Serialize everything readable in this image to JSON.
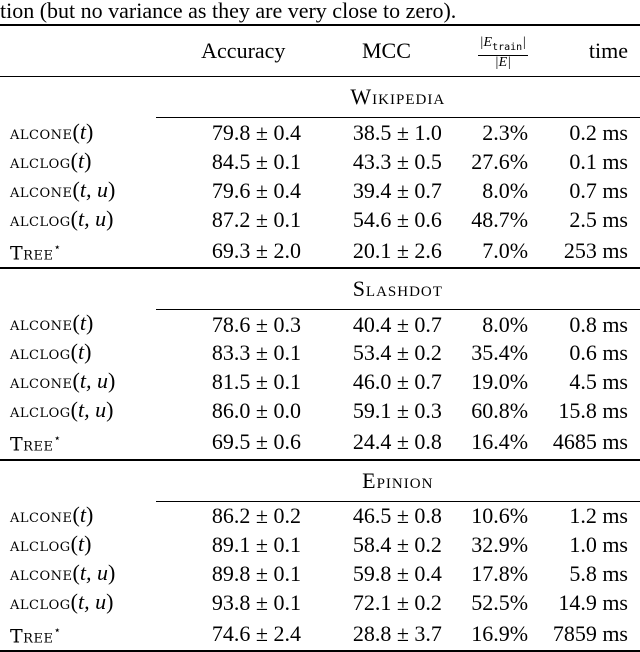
{
  "caption": "tion (but no variance as they are very close to zero).",
  "header": {
    "accuracy": "Accuracy",
    "mcc": "MCC",
    "frac_num": "|E_train|",
    "frac_den": "|E|",
    "time": "time"
  },
  "blocks": [
    {
      "dataset": "Wikipedia",
      "rows": [
        {
          "method": "ALCONE(t)",
          "accuracy": "79.8 ± 0.4",
          "mcc": "38.5 ± 1.0",
          "frac": "2.3%",
          "time": "0.2 ms"
        },
        {
          "method": "ALCLOG(t)",
          "accuracy": "84.5 ± 0.1",
          "mcc": "43.3 ± 0.5",
          "frac": "27.6%",
          "time": "0.1 ms"
        },
        {
          "method": "ALCONE(t, u)",
          "accuracy": "79.6 ± 0.4",
          "mcc": "39.4 ± 0.7",
          "frac": "8.0%",
          "time": "0.7 ms"
        },
        {
          "method": "ALCLOG(t, u)",
          "accuracy": "87.2 ± 0.1",
          "mcc": "54.6 ± 0.6",
          "frac": "48.7%",
          "time": "2.5 ms"
        },
        {
          "method": "TREE*",
          "accuracy": "69.3 ± 2.0",
          "mcc": "20.1 ± 2.6",
          "frac": "7.0%",
          "time": "253 ms"
        }
      ]
    },
    {
      "dataset": "Slashdot",
      "rows": [
        {
          "method": "ALCONE(t)",
          "accuracy": "78.6 ± 0.3",
          "mcc": "40.4 ± 0.7",
          "frac": "8.0%",
          "time": "0.8 ms"
        },
        {
          "method": "ALCLOG(t)",
          "accuracy": "83.3 ± 0.1",
          "mcc": "53.4 ± 0.2",
          "frac": "35.4%",
          "time": "0.6 ms"
        },
        {
          "method": "ALCONE(t, u)",
          "accuracy": "81.5 ± 0.1",
          "mcc": "46.0 ± 0.7",
          "frac": "19.0%",
          "time": "4.5 ms"
        },
        {
          "method": "ALCLOG(t, u)",
          "accuracy": "86.0 ± 0.0",
          "mcc": "59.1 ± 0.3",
          "frac": "60.8%",
          "time": "15.8 ms"
        },
        {
          "method": "TREE*",
          "accuracy": "69.5 ± 0.6",
          "mcc": "24.4 ± 0.8",
          "frac": "16.4%",
          "time": "4685 ms"
        }
      ]
    },
    {
      "dataset": "Epinion",
      "rows": [
        {
          "method": "ALCONE(t)",
          "accuracy": "86.2 ± 0.2",
          "mcc": "46.5 ± 0.8",
          "frac": "10.6%",
          "time": "1.2 ms"
        },
        {
          "method": "ALCLOG(t)",
          "accuracy": "89.1 ± 0.1",
          "mcc": "58.4 ± 0.2",
          "frac": "32.9%",
          "time": "1.0 ms"
        },
        {
          "method": "ALCONE(t, u)",
          "accuracy": "89.8 ± 0.1",
          "mcc": "59.8 ± 0.4",
          "frac": "17.8%",
          "time": "5.8 ms"
        },
        {
          "method": "ALCLOG(t, u)",
          "accuracy": "93.8 ± 0.1",
          "mcc": "72.1 ± 0.2",
          "frac": "52.5%",
          "time": "14.9 ms"
        },
        {
          "method": "TREE*",
          "accuracy": "74.6 ± 2.4",
          "mcc": "28.8 ± 3.7",
          "frac": "16.9%",
          "time": "7859 ms"
        }
      ]
    }
  ]
}
